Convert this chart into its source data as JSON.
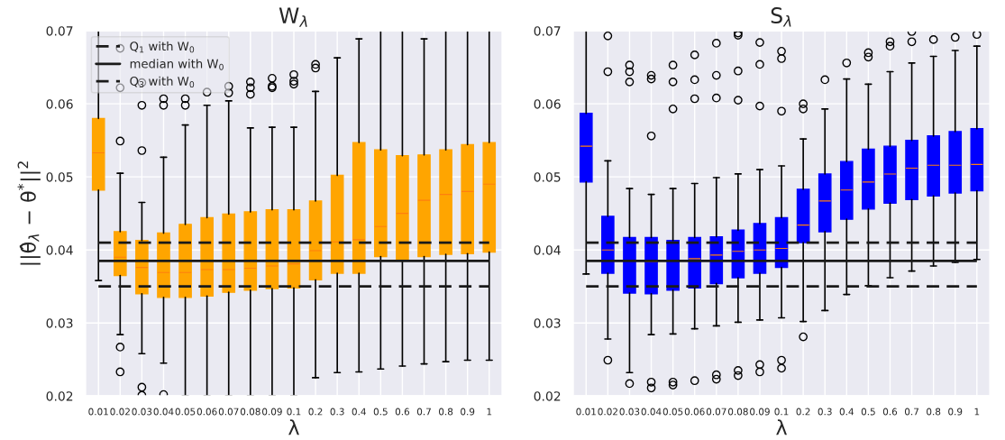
{
  "chart_data": [
    {
      "type": "box",
      "title": "W$_{λ}$",
      "xlabel": "λ",
      "ylabel": "||θ̂$_{λ}$ − θ$^{*}$||$^{2}$",
      "categories": [
        "0.01",
        "0.02",
        "0.03",
        "0.04",
        "0.05",
        "0.06",
        "0.07",
        "0.08",
        "0.09",
        "0.1",
        "0.2",
        "0.3",
        "0.4",
        "0.5",
        "0.6",
        "0.7",
        "0.8",
        "0.9",
        "1"
      ],
      "ylim": [
        0.02,
        0.07
      ],
      "yticks": [
        0.02,
        0.03,
        0.04,
        0.05,
        0.06,
        0.07
      ],
      "grid": true,
      "legend": "top left",
      "ref_lines": [
        {
          "axis": "y",
          "value": 0.035,
          "label": "Q$_{1}$ with W$_{0}$",
          "line_style": "dashed",
          "color": "#1a1a1a"
        },
        {
          "axis": "y",
          "value": 0.0385,
          "label": "median with W$_{0}$",
          "line_style": "solid",
          "color": "#1a1a1a"
        },
        {
          "axis": "y",
          "value": 0.041,
          "label": "Q$_{3}$ with W$_{0}$",
          "line_style": "dashed",
          "color": "#1a1a1a"
        }
      ],
      "series": [
        {
          "color": "#ffa500",
          "boxes": [
            {
              "low": 0.0358,
              "q1": 0.0482,
              "median": 0.0533,
              "q3": 0.058,
              "high": 0.07
            },
            {
              "low": 0.0284,
              "q1": 0.0365,
              "median": 0.039,
              "q3": 0.0425,
              "high": 0.0505,
              "outliers": [
                0.0549,
                0.0267,
                0.0233,
                0.0622,
                0.0676
              ]
            },
            {
              "low": 0.0258,
              "q1": 0.034,
              "median": 0.0376,
              "q3": 0.0413,
              "high": 0.0465,
              "outliers": [
                0.0536,
                0.0598,
                0.0629,
                0.0212,
                0.0201
              ]
            },
            {
              "low": 0.0245,
              "q1": 0.0335,
              "median": 0.0369,
              "q3": 0.0423,
              "high": 0.0527,
              "outliers": [
                0.0598,
                0.0607,
                0.0202
              ]
            },
            {
              "low": 0.02,
              "q1": 0.0335,
              "median": 0.0369,
              "q3": 0.0435,
              "high": 0.0571,
              "outliers": [
                0.0598,
                0.0607
              ]
            },
            {
              "low": 0.02,
              "q1": 0.0337,
              "median": 0.0373,
              "q3": 0.0444,
              "high": 0.0598,
              "outliers": [
                0.0616
              ]
            },
            {
              "low": 0.02,
              "q1": 0.0342,
              "median": 0.0373,
              "q3": 0.0449,
              "high": 0.0604,
              "outliers": [
                0.0615,
                0.0624
              ]
            },
            {
              "low": 0.02,
              "q1": 0.0345,
              "median": 0.0375,
              "q3": 0.0452,
              "high": 0.0567,
              "outliers": [
                0.063,
                0.0622,
                0.0613
              ]
            },
            {
              "low": 0.02,
              "q1": 0.0347,
              "median": 0.0378,
              "q3": 0.0455,
              "high": 0.0568,
              "outliers": [
                0.0635,
                0.0624,
                0.0622
              ]
            },
            {
              "low": 0.02,
              "q1": 0.0348,
              "median": 0.0381,
              "q3": 0.0455,
              "high": 0.0568,
              "outliers": [
                0.064,
                0.0631,
                0.0627
              ]
            },
            {
              "low": 0.0225,
              "q1": 0.0359,
              "median": 0.0399,
              "q3": 0.0467,
              "high": 0.0617,
              "outliers": [
                0.0654,
                0.0649
              ]
            },
            {
              "low": 0.0232,
              "q1": 0.0368,
              "median": 0.0411,
              "q3": 0.0502,
              "high": 0.0663
            },
            {
              "low": 0.0233,
              "q1": 0.0368,
              "median": 0.0414,
              "q3": 0.0547,
              "high": 0.0689
            },
            {
              "low": 0.0237,
              "q1": 0.0391,
              "median": 0.0432,
              "q3": 0.0537,
              "high": 0.07
            },
            {
              "low": 0.0241,
              "q1": 0.0385,
              "median": 0.045,
              "q3": 0.0529,
              "high": 0.07
            },
            {
              "low": 0.0244,
              "q1": 0.0391,
              "median": 0.0468,
              "q3": 0.053,
              "high": 0.0689
            },
            {
              "low": 0.0247,
              "q1": 0.0394,
              "median": 0.0476,
              "q3": 0.0537,
              "high": 0.07
            },
            {
              "low": 0.0249,
              "q1": 0.0395,
              "median": 0.048,
              "q3": 0.0544,
              "high": 0.07
            },
            {
              "low": 0.0249,
              "q1": 0.0397,
              "median": 0.049,
              "q3": 0.0547,
              "high": 0.07
            }
          ]
        }
      ]
    },
    {
      "type": "box",
      "title": "S$_{λ}$",
      "xlabel": "λ",
      "categories": [
        "0.01",
        "0.02",
        "0.03",
        "0.04",
        "0.05",
        "0.06",
        "0.07",
        "0.08",
        "0.09",
        "0.1",
        "0.2",
        "0.3",
        "0.4",
        "0.5",
        "0.6",
        "0.7",
        "0.8",
        "0.9",
        "1"
      ],
      "ylim": [
        0.02,
        0.07
      ],
      "yticks": [
        0.02,
        0.03,
        0.04,
        0.05,
        0.06,
        0.07
      ],
      "grid": true,
      "ref_lines": [
        {
          "axis": "y",
          "value": 0.035,
          "line_style": "dashed",
          "color": "#1a1a1a"
        },
        {
          "axis": "y",
          "value": 0.0385,
          "line_style": "solid",
          "color": "#1a1a1a"
        },
        {
          "axis": "y",
          "value": 0.041,
          "line_style": "dashed",
          "color": "#1a1a1a"
        }
      ],
      "series": [
        {
          "color": "#0000ff",
          "boxes": [
            {
              "low": 0.0367,
              "q1": 0.0493,
              "median": 0.0542,
              "q3": 0.0587,
              "high": 0.07
            },
            {
              "low": 0.0278,
              "q1": 0.0368,
              "median": 0.04,
              "q3": 0.0446,
              "high": 0.0522,
              "outliers": [
                0.0693,
                0.0644,
                0.0249
              ]
            },
            {
              "low": 0.0232,
              "q1": 0.0341,
              "median": 0.0385,
              "q3": 0.0417,
              "high": 0.0484,
              "outliers": [
                0.0653,
                0.0644,
                0.063,
                0.0217
              ]
            },
            {
              "low": 0.0284,
              "q1": 0.034,
              "median": 0.0384,
              "q3": 0.0417,
              "high": 0.0476,
              "outliers": [
                0.0639,
                0.0634,
                0.0556,
                0.0219,
                0.0211
              ]
            },
            {
              "low": 0.0285,
              "q1": 0.0345,
              "median": 0.0385,
              "q3": 0.0413,
              "high": 0.0484,
              "outliers": [
                0.0653,
                0.063,
                0.0593,
                0.0219,
                0.0215
              ]
            },
            {
              "low": 0.0292,
              "q1": 0.0348,
              "median": 0.0388,
              "q3": 0.0417,
              "high": 0.0491,
              "outliers": [
                0.0667,
                0.0633,
                0.0607,
                0.0221
              ]
            },
            {
              "low": 0.0296,
              "q1": 0.0354,
              "median": 0.0393,
              "q3": 0.0418,
              "high": 0.0499,
              "outliers": [
                0.0683,
                0.0639,
                0.0608,
                0.0229,
                0.0223
              ]
            },
            {
              "low": 0.0301,
              "q1": 0.0362,
              "median": 0.0398,
              "q3": 0.0427,
              "high": 0.0504,
              "outliers": [
                0.0697,
                0.0694,
                0.0645,
                0.0605,
                0.0235,
                0.0228
              ]
            },
            {
              "low": 0.0304,
              "q1": 0.0368,
              "median": 0.04,
              "q3": 0.0436,
              "high": 0.051,
              "outliers": [
                0.0684,
                0.0654,
                0.0597,
                0.0243,
                0.0233
              ]
            },
            {
              "low": 0.0307,
              "q1": 0.0376,
              "median": 0.0402,
              "q3": 0.0444,
              "high": 0.0515,
              "outliers": [
                0.0672,
                0.0662,
                0.059,
                0.0249,
                0.0238
              ]
            },
            {
              "low": 0.0302,
              "q1": 0.041,
              "median": 0.0434,
              "q3": 0.0483,
              "high": 0.0552,
              "outliers": [
                0.06,
                0.0593,
                0.0281
              ]
            },
            {
              "low": 0.0317,
              "q1": 0.0425,
              "median": 0.0467,
              "q3": 0.0504,
              "high": 0.0593,
              "outliers": [
                0.0633
              ]
            },
            {
              "low": 0.0339,
              "q1": 0.0442,
              "median": 0.0482,
              "q3": 0.0521,
              "high": 0.0634,
              "outliers": [
                0.0656
              ]
            },
            {
              "low": 0.0351,
              "q1": 0.0456,
              "median": 0.0493,
              "q3": 0.0538,
              "high": 0.0627,
              "outliers": [
                0.067,
                0.0664
              ]
            },
            {
              "low": 0.0362,
              "q1": 0.0464,
              "median": 0.0504,
              "q3": 0.0542,
              "high": 0.0644,
              "outliers": [
                0.0685,
                0.0679
              ]
            },
            {
              "low": 0.0371,
              "q1": 0.0469,
              "median": 0.0512,
              "q3": 0.055,
              "high": 0.0656,
              "outliers": [
                0.0699,
                0.0685
              ]
            },
            {
              "low": 0.0378,
              "q1": 0.0474,
              "median": 0.0516,
              "q3": 0.0556,
              "high": 0.0665,
              "outliers": [
                0.0688
              ]
            },
            {
              "low": 0.0383,
              "q1": 0.0478,
              "median": 0.0516,
              "q3": 0.0562,
              "high": 0.0673,
              "outliers": [
                0.0691
              ]
            },
            {
              "low": 0.0387,
              "q1": 0.0481,
              "median": 0.0517,
              "q3": 0.0566,
              "high": 0.0679,
              "outliers": [
                0.0695
              ]
            }
          ]
        }
      ]
    }
  ]
}
